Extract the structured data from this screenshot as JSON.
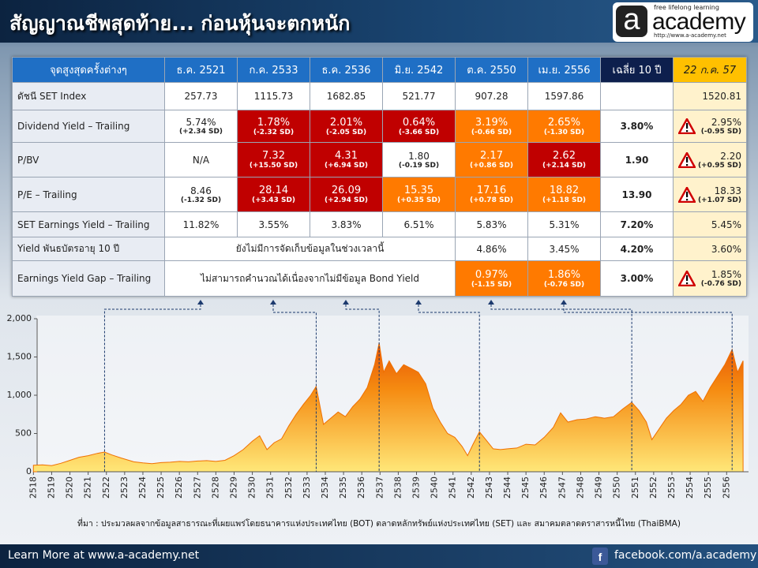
{
  "header": {
    "title": "สัญญาณชีพสุดท้าย... ก่อนหุ้นจะตกหนัก",
    "logo": {
      "letter": "a",
      "name": "academy",
      "tagline": "free lifelong learning",
      "url": "http://www.a-academy.net"
    }
  },
  "table": {
    "columns": [
      "จุดสูงสุดครั้งต่างๆ",
      "ธ.ค. 2521",
      "ก.ค. 2533",
      "ธ.ค. 2536",
      "มิ.ย. 2542",
      "ต.ค. 2550",
      "เม.ย. 2556",
      "เฉลี่ย 10 ปี",
      "22 ก.ค. 57"
    ],
    "rows": [
      {
        "label": "ดัชนี SET Index",
        "cells": [
          {
            "text": "257.73"
          },
          {
            "text": "1115.73"
          },
          {
            "text": "1682.85"
          },
          {
            "text": "521.77"
          },
          {
            "text": "907.28"
          },
          {
            "text": "1597.86"
          },
          null,
          {
            "text": "1520.81"
          }
        ]
      },
      {
        "label": "Dividend Yield – Trailing",
        "cells": [
          {
            "text": "5.74%",
            "sd": "(+2.34 SD)"
          },
          {
            "text": "1.78%",
            "sd": "(-2.32 SD)",
            "fill": "#c00000"
          },
          {
            "text": "2.01%",
            "sd": "(-2.05 SD)",
            "fill": "#c00000"
          },
          {
            "text": "0.64%",
            "sd": "(-3.66 SD)",
            "fill": "#c00000"
          },
          {
            "text": "3.19%",
            "sd": "(-0.66 SD)",
            "fill": "#ff7a00"
          },
          {
            "text": "2.65%",
            "sd": "(-1.30 SD)",
            "fill": "#ff7a00"
          },
          {
            "text": "3.80%"
          },
          {
            "text": "2.95%",
            "sd": "(-0.95 SD)"
          }
        ]
      },
      {
        "label": "P/BV",
        "cells": [
          {
            "text": "N/A"
          },
          {
            "text": "7.32",
            "sd": "(+15.50 SD)",
            "fill": "#c00000"
          },
          {
            "text": "4.31",
            "sd": "(+6.94 SD)",
            "fill": "#c00000"
          },
          {
            "text": "1.80",
            "sd": "(-0.19 SD)"
          },
          {
            "text": "2.17",
            "sd": "(+0.86 SD)",
            "fill": "#ff7a00"
          },
          {
            "text": "2.62",
            "sd": "(+2.14 SD)",
            "fill": "#c00000"
          },
          {
            "text": "1.90"
          },
          {
            "text": "2.20",
            "sd": "(+0.95 SD)"
          }
        ]
      },
      {
        "label": "P/E – Trailing",
        "cells": [
          {
            "text": "8.46",
            "sd": "(-1.32 SD)"
          },
          {
            "text": "28.14",
            "sd": "(+3.43 SD)",
            "fill": "#c00000"
          },
          {
            "text": "26.09",
            "sd": "(+2.94 SD)",
            "fill": "#c00000"
          },
          {
            "text": "15.35",
            "sd": "(+0.35 SD)",
            "fill": "#ff7a00"
          },
          {
            "text": "17.16",
            "sd": "(+0.78 SD)",
            "fill": "#ff7a00"
          },
          {
            "text": "18.82",
            "sd": "(+1.18 SD)",
            "fill": "#ff7a00"
          },
          {
            "text": "13.90"
          },
          {
            "text": "18.33",
            "sd": "(+1.07 SD)"
          }
        ]
      },
      {
        "label": "SET Earnings Yield – Trailing",
        "cells": [
          {
            "text": "11.82%"
          },
          {
            "text": "3.55%"
          },
          {
            "text": "3.83%"
          },
          {
            "text": "6.51%"
          },
          {
            "text": "5.83%"
          },
          {
            "text": "5.31%"
          },
          {
            "text": "7.20%"
          },
          {
            "text": "5.45%"
          }
        ]
      },
      {
        "label": "Yield พันธบัตรอายุ 10 ปี",
        "cells": [
          {
            "text": "ยังไม่มีการจัดเก็บข้อมูลในช่วงเวลานี้"
          },
          {
            "text": "4.86%"
          },
          {
            "text": "3.45%"
          },
          {
            "text": "4.20%"
          },
          {
            "text": "3.60%"
          }
        ]
      },
      {
        "label": "Earnings Yield Gap – Trailing",
        "cells": [
          {
            "text": "ไม่สามารถคำนวณได้เนื่องจากไม่มีข้อมูล Bond Yield"
          },
          {
            "text": "0.97%",
            "sd": "(-1.15 SD)",
            "fill": "#ff7a00"
          },
          {
            "text": "1.86%",
            "sd": "(-0.76 SD)",
            "fill": "#ff7a00"
          },
          {
            "text": "3.00%"
          },
          {
            "text": "1.85%",
            "sd": "(-0.76 SD)"
          }
        ]
      }
    ]
  },
  "chart_data": {
    "type": "area",
    "color": "#f07000",
    "x": [
      2518,
      2518.5,
      2519,
      2519.5,
      2520,
      2520.5,
      2521,
      2521.5,
      2521.9,
      2522.3,
      2522.8,
      2523.5,
      2524,
      2524.5,
      2525,
      2525.5,
      2526,
      2526.5,
      2527,
      2527.5,
      2528,
      2528.5,
      2529,
      2529.5,
      2530,
      2530.4,
      2530.8,
      2531.2,
      2531.6,
      2532,
      2532.4,
      2532.8,
      2533.2,
      2533.5,
      2533.9,
      2534.3,
      2534.7,
      2535.1,
      2535.5,
      2535.9,
      2536.3,
      2536.7,
      2536.95,
      2537.2,
      2537.5,
      2537.9,
      2538.3,
      2538.7,
      2539.1,
      2539.5,
      2539.9,
      2540.3,
      2540.7,
      2541.1,
      2541.5,
      2541.8,
      2542.1,
      2542.45,
      2542.8,
      2543.2,
      2543.6,
      2544,
      2544.5,
      2545,
      2545.5,
      2546,
      2546.5,
      2546.9,
      2547.3,
      2547.8,
      2548.3,
      2548.8,
      2549.3,
      2549.8,
      2550.3,
      2550.8,
      2551.2,
      2551.6,
      2551.9,
      2552.3,
      2552.7,
      2553.1,
      2553.5,
      2553.9,
      2554.3,
      2554.7,
      2555.1,
      2555.5,
      2555.9,
      2556.3,
      2556.6,
      2556.9
    ],
    "values": [
      85,
      90,
      80,
      110,
      150,
      190,
      210,
      240,
      258,
      220,
      180,
      130,
      115,
      105,
      120,
      125,
      135,
      130,
      140,
      145,
      135,
      150,
      210,
      290,
      400,
      470,
      290,
      380,
      430,
      600,
      750,
      880,
      1000,
      1115,
      620,
      700,
      780,
      720,
      850,
      950,
      1100,
      1400,
      1683,
      1300,
      1450,
      1280,
      1400,
      1350,
      1300,
      1150,
      830,
      650,
      500,
      450,
      330,
      210,
      360,
      522,
      420,
      300,
      290,
      300,
      310,
      360,
      350,
      450,
      580,
      770,
      650,
      680,
      690,
      720,
      700,
      720,
      820,
      907,
      800,
      650,
      420,
      560,
      700,
      800,
      880,
      1000,
      1050,
      920,
      1100,
      1250,
      1400,
      1598,
      1300,
      1450
    ],
    "xlim": [
      2516.6,
      2557.2
    ],
    "ylim": [
      0,
      2000
    ],
    "xticks": [
      2518,
      2519,
      2520,
      2521,
      2522,
      2523,
      2524,
      2525,
      2526,
      2527,
      2528,
      2529,
      2530,
      2531,
      2532,
      2533,
      2534,
      2535,
      2536,
      2537,
      2538,
      2539,
      2540,
      2541,
      2542,
      2543,
      2544,
      2545,
      2546,
      2547,
      2548,
      2549,
      2550,
      2551,
      2552,
      2553,
      2554,
      2555,
      2556
    ],
    "yticks": [
      {
        "value": 2000,
        "label": "2,000"
      },
      {
        "value": 1500,
        "label": "1,500"
      },
      {
        "value": 1000,
        "label": "1,000"
      },
      500,
      0
    ]
  },
  "source": "ที่มา : ประมวลผลจากข้อมูลสาธารณะที่เผยแพร่โดยธนาคารแห่งประเทศไทย (BOT)  ตลาดหลักทรัพย์แห่งประเทศไทย (SET) และ สมาคมตลาดตราสารหนี้ไทย (ThaiBMA)",
  "footer": {
    "left": "Learn More at www.a-academy.net",
    "right": "facebook.com/a.academy"
  }
}
